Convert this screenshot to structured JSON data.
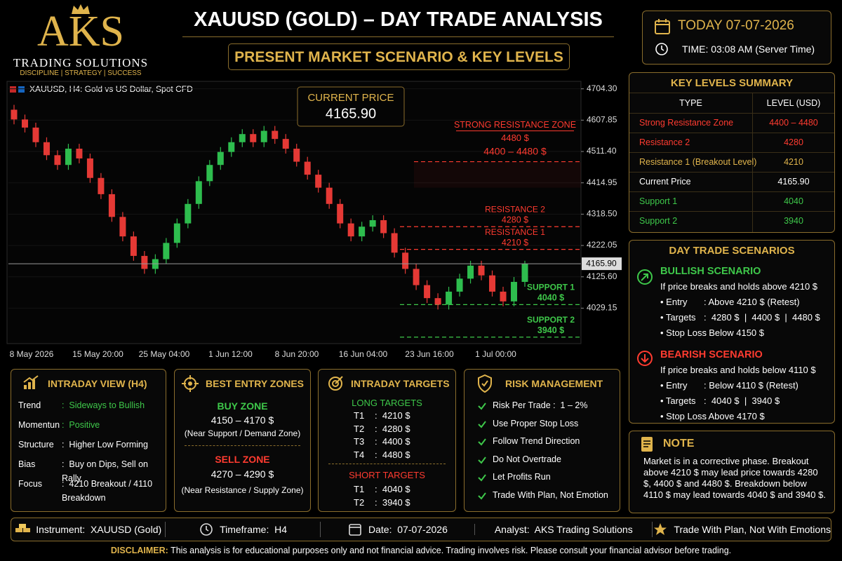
{
  "header": {
    "brand": "AKS",
    "name": "TRADING SOLUTIONS",
    "tagline": "DISCIPLINE | STRATEGY | SUCCESS",
    "title": "XAUUSD (GOLD) – DAY TRADE ANALYSIS",
    "subtitle": "PRESENT MARKET SCENARIO & KEY LEVELS",
    "date": "TODAY 07-07-2026",
    "time": "TIME: 03:08 AM (Server Time)"
  },
  "chart_data": {
    "type": "candlestick",
    "title": "XAUUSD, H4:  Gold vs US Dollar, Spot CFD",
    "up_color": "#2ebd4e",
    "down_color": "#e53935",
    "open": [
      4640,
      4610,
      4585,
      4540,
      4500,
      4470,
      4520,
      4490,
      4430,
      4380,
      4310,
      4250,
      4190,
      4150,
      4180,
      4230,
      4290,
      4350,
      4420,
      4470,
      4510,
      4540,
      4565,
      4540,
      4575,
      4550,
      4520,
      4480,
      4440,
      4400,
      4350,
      4290,
      4250,
      4280,
      4300,
      4260,
      4200,
      4150,
      4100,
      4060,
      4040,
      4080,
      4120,
      4160,
      4130,
      4080,
      4050,
      4110
    ],
    "high": [
      4655,
      4625,
      4600,
      4555,
      4515,
      4535,
      4535,
      4505,
      4445,
      4395,
      4325,
      4265,
      4205,
      4195,
      4245,
      4305,
      4365,
      4435,
      4485,
      4525,
      4555,
      4580,
      4580,
      4590,
      4590,
      4565,
      4535,
      4495,
      4455,
      4415,
      4365,
      4305,
      4295,
      4315,
      4315,
      4275,
      4215,
      4165,
      4115,
      4075,
      4095,
      4135,
      4175,
      4175,
      4145,
      4095,
      4125,
      4175
    ],
    "low": [
      4595,
      4570,
      4525,
      4485,
      4455,
      4455,
      4475,
      4415,
      4365,
      4295,
      4235,
      4175,
      4135,
      4135,
      4165,
      4215,
      4275,
      4335,
      4405,
      4455,
      4495,
      4525,
      4525,
      4525,
      4535,
      4505,
      4465,
      4425,
      4385,
      4335,
      4275,
      4235,
      4235,
      4265,
      4245,
      4185,
      4135,
      4085,
      4045,
      4025,
      4025,
      4065,
      4105,
      4115,
      4065,
      4035,
      4035,
      4095
    ],
    "close": [
      4610,
      4585,
      4540,
      4500,
      4470,
      4520,
      4490,
      4430,
      4380,
      4310,
      4250,
      4190,
      4150,
      4180,
      4230,
      4290,
      4350,
      4420,
      4470,
      4510,
      4540,
      4565,
      4540,
      4575,
      4550,
      4520,
      4480,
      4440,
      4400,
      4350,
      4290,
      4250,
      4280,
      4300,
      4260,
      4200,
      4150,
      4100,
      4060,
      4040,
      4080,
      4120,
      4160,
      4130,
      4080,
      4050,
      4110,
      4165.9
    ],
    "ylim": [
      3920,
      4723
    ],
    "yticks": [
      {
        "value": 4704.3,
        "label": "4704.30"
      },
      4607.85,
      {
        "value": 4511.4,
        "label": "4511.40"
      },
      4414.95,
      {
        "value": 4318.5,
        "label": "4318.50"
      },
      4222.05,
      {
        "value": 4125.6,
        "label": "4125.60"
      },
      4029.15
    ],
    "xtick_labels": [
      "8 May 2026",
      "15 May 20:00",
      "25 May 04:00",
      "1 Jun 12:00",
      "8 Jun 20:00",
      "16 Jun 04:00",
      "23 Jun 16:00",
      "1 Jul 00:00"
    ],
    "current_price": {
      "title": "CURRENT PRICE",
      "value": 4165.9,
      "label": "4165.90"
    },
    "levels": [
      {
        "name": "STRONG RESISTANCE ZONE",
        "value": 4480,
        "value_label": "4480 $",
        "zone_low": 4400,
        "zone_label": "4400 – 4480 $",
        "color": "#ff3b30"
      },
      {
        "name": "RESISTANCE 2",
        "value": 4280,
        "value_label": "4280 $",
        "color": "#ff3b30"
      },
      {
        "name": "RESISTANCE 1",
        "value": 4210,
        "value_label": "4210 $",
        "color": "#ff3b30"
      },
      {
        "name": "SUPPORT 1",
        "value": 4040,
        "value_label": "4040 $",
        "color": "#3ec84a"
      },
      {
        "name": "SUPPORT 2",
        "value": 3940,
        "value_label": "3940 $",
        "color": "#3ec84a"
      }
    ]
  },
  "key_levels": {
    "title": "KEY LEVELS SUMMARY",
    "columns": [
      "TYPE",
      "LEVEL (USD)"
    ],
    "rows": [
      {
        "type": "Strong Resistance Zone",
        "level": "4400 – 4480",
        "color": "#ff3b30"
      },
      {
        "type": "Resistance 2",
        "level": "4280",
        "color": "#ff3b30"
      },
      {
        "type": "Resistance 1 (Breakout Level)",
        "level": "4210",
        "color": "#e0b44c"
      },
      {
        "type": "Current Price",
        "level": "4165.90",
        "color": "#ffffff"
      },
      {
        "type": "Support 1",
        "level": "4040",
        "color": "#3ec84a"
      },
      {
        "type": "Support 2",
        "level": "3940",
        "color": "#3ec84a"
      }
    ]
  },
  "scenarios": {
    "title": "DAY TRADE SCENARIOS",
    "bullish": {
      "title": "BULLISH SCENARIO",
      "condition": "If price breaks and holds above 4210 $",
      "items": [
        {
          "key": "• Entry",
          "value": ": Above 4210 $ (Retest)"
        },
        {
          "key": "• Targets",
          "value": ":  4280 $  |  4400 $  |  4480 $"
        },
        {
          "key": "• Stop Loss",
          "value": ": Below 4150 $"
        }
      ]
    },
    "bearish": {
      "title": "BEARISH SCENARIO",
      "condition": "If price breaks and holds below 4110 $",
      "items": [
        {
          "key": "• Entry",
          "value": ": Below 4110 $ (Retest)"
        },
        {
          "key": "• Targets",
          "value": ":  4040 $  |  3940 $"
        },
        {
          "key": "• Stop Loss",
          "value": ": Above 4170 $"
        }
      ]
    }
  },
  "note": {
    "title": "NOTE",
    "text": "Market is in a corrective phase. Breakout above 4210 $ may lead price towards 4280 $, 4400 $ and 4480 $. Breakdown below 4110 $ may lead towards 4040 $ and 3940 $."
  },
  "intraday_view": {
    "title": "INTRADAY VIEW (H4)",
    "rows": [
      {
        "key": "Trend",
        "value": ":  Sideways to Bullish",
        "color": "#3ec84a"
      },
      {
        "key": "Momentun",
        "value": ":  Positive",
        "color": "#3ec84a"
      },
      {
        "key": "Structure",
        "value": ":  Higher Low Forming",
        "color": "#ffffff"
      },
      {
        "key": "Bias",
        "value": ":  Buy on Dips, Sell on Rally",
        "color": "#ffffff"
      },
      {
        "key": "Focus",
        "value": ":  4210 Breakout / 4110 Breakdown",
        "color": "#ffffff"
      }
    ]
  },
  "entry_zones": {
    "title": "BEST ENTRY ZONES",
    "buy": {
      "title": "BUY ZONE",
      "range": "4150 – 4170 $",
      "note": "(Near Support / Demand Zone)"
    },
    "sell": {
      "title": "SELL ZONE",
      "range": "4270 – 4290 $",
      "note": "(Near Resistance / Supply Zone)"
    }
  },
  "targets": {
    "title": "INTRADAY TARGETS",
    "long": {
      "title": "LONG TARGETS",
      "rows": [
        [
          "T1",
          ":  4210 $"
        ],
        [
          "T2",
          ":  4280 $"
        ],
        [
          "T3",
          ":  4400 $"
        ],
        [
          "T4",
          ":  4480 $"
        ]
      ]
    },
    "short": {
      "title": "SHORT TARGETS",
      "rows": [
        [
          "T1",
          ":  4040 $"
        ],
        [
          "T2",
          ":  3940 $"
        ]
      ]
    }
  },
  "risk": {
    "title": "RISK MANAGEMENT",
    "items": [
      "Risk Per Trade :  1 – 2%",
      "Use Proper Stop Loss",
      "Follow Trend Direction",
      "Do Not Overtrade",
      "Let Profits Run",
      "Trade With Plan, Not Emotion"
    ]
  },
  "footer": {
    "items": [
      "Instrument:  XAUUSD (Gold)",
      "Timeframe:  H4",
      "Date:  07-07-2026",
      "Analyst:  AKS Trading Solutions",
      "Trade With Plan, Not With Emotions"
    ],
    "disclaimer_label": "DISCLAIMER:",
    "disclaimer": "This analysis is for educational purposes only and not financial advice. Trading involves risk. Please consult your financial advisor before trading."
  }
}
